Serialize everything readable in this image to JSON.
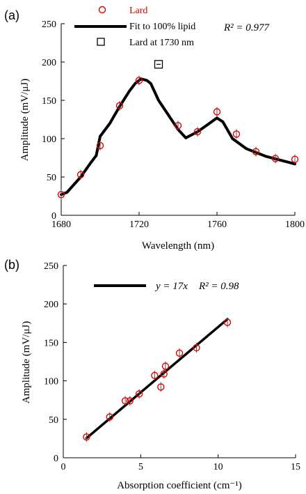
{
  "chart_data": [
    {
      "panel_label": "(a)",
      "type": "line",
      "xlabel": "Wavelength (nm)",
      "ylabel": "Amplitude (mV/μJ)",
      "xlim": [
        1680,
        1800
      ],
      "ylim": [
        0,
        250
      ],
      "xticks": [
        "1680",
        "1720",
        "1760",
        "1800"
      ],
      "yticks": [
        "0",
        "50",
        "100",
        "150",
        "200",
        "250"
      ],
      "legend": {
        "lard": "Lard",
        "fit": "Fit to 100% lipid",
        "lard1730": "Lard at 1730 nm",
        "r2": "R² = 0.977"
      },
      "series": [
        {
          "name": "Lard",
          "marker": "circle",
          "color": "#e00000",
          "x": [
            1680,
            1690,
            1700,
            1710,
            1720,
            1740,
            1750,
            1760,
            1770,
            1780,
            1790,
            1800
          ],
          "y": [
            27,
            53,
            91,
            143,
            176,
            117,
            109,
            135,
            106,
            83,
            74,
            73
          ]
        },
        {
          "name": "Fit to 100% lipid",
          "color": "#000000",
          "x": [
            1680,
            1683,
            1690,
            1695,
            1698,
            1700,
            1705,
            1710,
            1715,
            1718,
            1721,
            1724,
            1726,
            1730,
            1735,
            1740,
            1744,
            1750,
            1755,
            1760,
            1763,
            1768,
            1775,
            1785,
            1800
          ],
          "y": [
            27,
            30,
            50,
            68,
            78,
            103,
            120,
            142,
            162,
            172,
            178,
            176,
            172,
            150,
            131,
            112,
            101,
            109,
            118,
            127,
            122,
            100,
            87,
            77,
            67
          ]
        },
        {
          "name": "Lard at 1730 nm",
          "marker": "square",
          "color": "#000000",
          "x": [
            1730
          ],
          "y": [
            197
          ]
        }
      ]
    },
    {
      "panel_label": "(b)",
      "type": "scatter",
      "xlabel": "Absorption coefficient (cm⁻¹)",
      "ylabel": "Amplitude (mV/μJ)",
      "xlim": [
        0,
        15
      ],
      "ylim": [
        0,
        250
      ],
      "xticks": [
        "0",
        "5",
        "10",
        "15"
      ],
      "yticks": [
        "0",
        "50",
        "100",
        "150",
        "200",
        "250"
      ],
      "legend": {
        "fit_eq": "y = 17x",
        "r2": "R² = 0.98"
      },
      "fit": {
        "slope": 17,
        "x_range": [
          1.5,
          10.6
        ]
      },
      "series": [
        {
          "name": "",
          "marker": "circle",
          "color": "#e00000",
          "x": [
            1.5,
            3.0,
            4.0,
            4.3,
            4.9,
            5.9,
            6.3,
            6.5,
            6.6,
            7.5,
            8.6,
            10.6
          ],
          "y": [
            27,
            53,
            74,
            74,
            83,
            107,
            92,
            109,
            119,
            136,
            143,
            176
          ]
        }
      ]
    }
  ]
}
